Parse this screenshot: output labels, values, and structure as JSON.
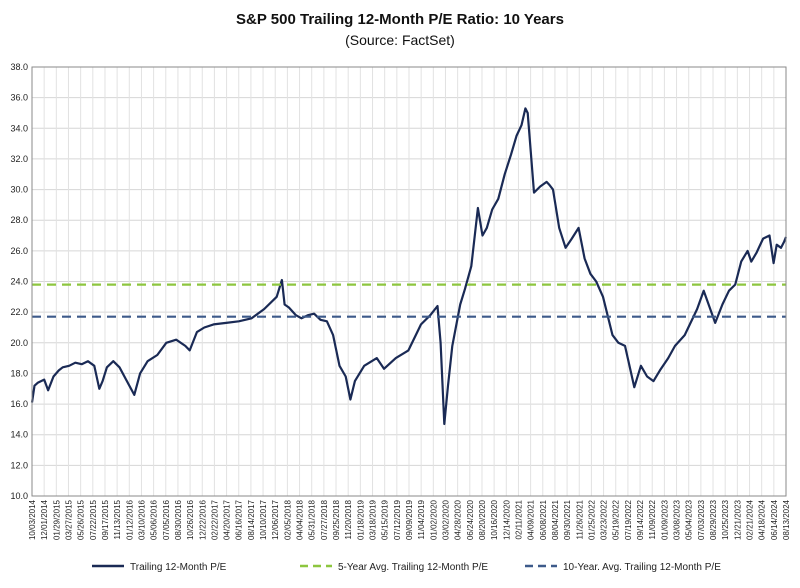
{
  "chart_data": {
    "type": "line",
    "title": "S&P 500 Trailing 12-Month P/E Ratio: 10 Years",
    "subtitle": "(Source: FactSet)",
    "xlabel": "",
    "ylabel": "",
    "ylim": [
      10,
      38
    ],
    "yticks": [
      "10.0",
      "12.0",
      "14.0",
      "16.0",
      "18.0",
      "20.0",
      "22.0",
      "24.0",
      "26.0",
      "28.0",
      "30.0",
      "32.0",
      "34.0",
      "36.0",
      "38.0"
    ],
    "xlim": [
      "2014-10-03",
      "2024-10-04"
    ],
    "grid": true,
    "legend_position": "bottom",
    "xticks": [
      "10/03/2014",
      "12/01/2014",
      "01/29/2015",
      "03/27/2015",
      "05/26/2015",
      "07/22/2015",
      "09/17/2015",
      "11/13/2015",
      "01/12/2016",
      "03/10/2016",
      "05/06/2016",
      "07/05/2016",
      "08/30/2016",
      "10/26/2016",
      "12/22/2016",
      "02/22/2017",
      "04/20/2017",
      "06/16/2017",
      "08/14/2017",
      "10/10/2017",
      "12/06/2017",
      "02/05/2018",
      "04/04/2018",
      "05/31/2018",
      "07/27/2018",
      "09/25/2018",
      "11/20/2018",
      "01/18/2019",
      "03/18/2019",
      "05/15/2019",
      "07/12/2019",
      "09/09/2019",
      "11/04/2019",
      "01/02/2020",
      "03/02/2020",
      "04/28/2020",
      "06/24/2020",
      "08/20/2020",
      "10/16/2020",
      "12/14/2020",
      "02/11/2021",
      "04/09/2021",
      "06/08/2021",
      "08/04/2021",
      "09/30/2021",
      "11/26/2021",
      "01/25/2022",
      "03/23/2022",
      "05/19/2022",
      "07/19/2022",
      "09/14/2022",
      "11/09/2022",
      "01/09/2023",
      "03/08/2023",
      "05/04/2023",
      "07/03/2023",
      "08/29/2023",
      "10/25/2023",
      "12/21/2023",
      "02/21/2024",
      "04/18/2024",
      "06/14/2024",
      "08/13/2024"
    ],
    "series": [
      {
        "name": "Trailing 12-Month P/E",
        "color": "#1a2a55",
        "style": "solid",
        "x": [
          "2014-10-03",
          "2014-10-15",
          "2014-11-01",
          "2014-12-01",
          "2014-12-20",
          "2015-01-15",
          "2015-02-10",
          "2015-03-01",
          "2015-04-01",
          "2015-05-01",
          "2015-06-01",
          "2015-07-01",
          "2015-08-01",
          "2015-08-25",
          "2015-09-10",
          "2015-10-01",
          "2015-11-01",
          "2015-12-01",
          "2016-01-10",
          "2016-02-11",
          "2016-03-10",
          "2016-04-15",
          "2016-06-01",
          "2016-07-15",
          "2016-09-01",
          "2016-10-15",
          "2016-11-05",
          "2016-12-10",
          "2017-01-15",
          "2017-03-01",
          "2017-05-01",
          "2017-07-01",
          "2017-09-01",
          "2017-11-01",
          "2018-01-01",
          "2018-01-26",
          "2018-02-08",
          "2018-03-01",
          "2018-04-04",
          "2018-05-01",
          "2018-06-01",
          "2018-07-01",
          "2018-08-01",
          "2018-09-01",
          "2018-10-01",
          "2018-11-01",
          "2018-12-01",
          "2018-12-24",
          "2019-01-15",
          "2019-03-01",
          "2019-05-01",
          "2019-06-05",
          "2019-08-01",
          "2019-10-01",
          "2019-12-01",
          "2020-01-15",
          "2020-02-19",
          "2020-03-05",
          "2020-03-23",
          "2020-04-10",
          "2020-05-01",
          "2020-06-08",
          "2020-07-01",
          "2020-08-01",
          "2020-09-02",
          "2020-09-24",
          "2020-10-15",
          "2020-11-10",
          "2020-12-10",
          "2021-01-10",
          "2021-02-10",
          "2021-03-08",
          "2021-04-01",
          "2021-04-20",
          "2021-05-01",
          "2021-06-01",
          "2021-07-01",
          "2021-08-01",
          "2021-08-15",
          "2021-09-01",
          "2021-10-01",
          "2021-11-01",
          "2021-12-01",
          "2022-01-03",
          "2022-02-01",
          "2022-03-01",
          "2022-03-29",
          "2022-05-01",
          "2022-06-16",
          "2022-07-15",
          "2022-08-16",
          "2022-09-30",
          "2022-11-01",
          "2022-12-01",
          "2023-01-01",
          "2023-02-01",
          "2023-03-13",
          "2023-04-15",
          "2023-06-01",
          "2023-07-31",
          "2023-09-01",
          "2023-10-27",
          "2023-12-01",
          "2024-01-02",
          "2024-02-01",
          "2024-03-01",
          "2024-04-01",
          "2024-04-19",
          "2024-05-15",
          "2024-06-15",
          "2024-07-16",
          "2024-08-05",
          "2024-08-20",
          "2024-09-10",
          "2024-09-25",
          "2024-10-04"
        ],
        "y": [
          16.1,
          17.2,
          17.4,
          17.6,
          16.9,
          17.8,
          18.2,
          18.4,
          18.5,
          18.7,
          18.6,
          18.8,
          18.5,
          17.0,
          17.5,
          18.4,
          18.8,
          18.4,
          17.4,
          16.6,
          18.0,
          18.8,
          19.2,
          20.0,
          20.2,
          19.8,
          19.5,
          20.7,
          21.0,
          21.2,
          21.3,
          21.4,
          21.6,
          22.2,
          23.0,
          24.1,
          22.5,
          22.3,
          21.8,
          21.6,
          21.8,
          21.9,
          21.5,
          21.4,
          20.5,
          18.5,
          17.8,
          16.3,
          17.5,
          18.5,
          19.0,
          18.3,
          19.0,
          19.5,
          21.2,
          21.8,
          22.4,
          20.0,
          14.7,
          17.2,
          19.8,
          22.5,
          23.5,
          25.0,
          28.8,
          27.0,
          27.5,
          28.7,
          29.4,
          31.0,
          32.3,
          33.5,
          34.2,
          35.3,
          35.0,
          29.8,
          30.2,
          30.5,
          30.3,
          30.0,
          27.5,
          26.2,
          26.8,
          27.5,
          25.5,
          24.5,
          24.0,
          23.0,
          20.5,
          20.0,
          19.8,
          17.1,
          18.5,
          17.8,
          17.5,
          18.2,
          19.0,
          19.8,
          20.5,
          22.2,
          23.4,
          21.3,
          22.5,
          23.4,
          23.8,
          25.3,
          26.0,
          25.3,
          25.9,
          26.8,
          27.0,
          25.2,
          26.4,
          26.2,
          26.6,
          26.9
        ]
      },
      {
        "name": "5-Year Avg. Trailing 12-Month P/E",
        "color": "#8dc63f",
        "style": "dashed",
        "x": [
          "2014-10-03",
          "2024-10-04"
        ],
        "y": [
          23.8,
          23.8
        ]
      },
      {
        "name": "10-Year. Avg. Trailing 12-Month P/E",
        "color": "#3d5a8a",
        "style": "dashed",
        "x": [
          "2014-10-03",
          "2024-10-04"
        ],
        "y": [
          21.7,
          21.7
        ]
      }
    ]
  }
}
